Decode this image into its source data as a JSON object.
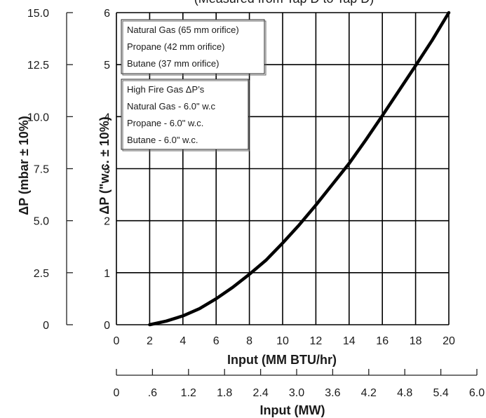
{
  "chart_data": {
    "type": "line",
    "title": "(Measured from Tap D to Tap D)",
    "xlabel": "Input (MM BTU/hr)",
    "ylabel": "ΔP (\"w.c. ± 10%)",
    "ylabel_secondary": "ΔP (mbar ± 10%)",
    "xlabel_secondary": "Input (MW)",
    "xlim": [
      0,
      20
    ],
    "ylim": [
      0,
      6
    ],
    "grid": true,
    "x_ticks": [
      "0",
      "2",
      "4",
      "6",
      "8",
      "10",
      "12",
      "14",
      "16",
      "18",
      "20"
    ],
    "y_ticks": [
      "0",
      "1",
      "2",
      "3",
      "4",
      "5",
      "6"
    ],
    "y_secondary_ticks": [
      "0",
      "2.5",
      "5.0",
      "7.5",
      "10.0",
      "12.5",
      "15.0"
    ],
    "x_secondary_ticks": [
      "0",
      ".6",
      "1.2",
      "1.8",
      "2.4",
      "3.0",
      "3.6",
      "4.2",
      "4.8",
      "5.4",
      "6.0"
    ],
    "series": [
      {
        "x": [
          2,
          3,
          4,
          5,
          6,
          7,
          8,
          9,
          10,
          11,
          12,
          13,
          14,
          15,
          16,
          17,
          18,
          19,
          20
        ],
        "values": [
          0.0,
          0.07,
          0.17,
          0.31,
          0.5,
          0.72,
          0.97,
          1.24,
          1.57,
          1.92,
          2.3,
          2.7,
          3.1,
          3.55,
          4.02,
          4.5,
          4.98,
          5.47,
          6.0
        ]
      }
    ],
    "legend_boxes": [
      {
        "lines": [
          "Natural Gas (65 mm orifice)",
          "Propane (42 mm orifice)",
          "Butane (37 mm orifice)"
        ]
      },
      {
        "lines": [
          "High Fire Gas ΔP’s",
          "Natural Gas - 6.0\" w.c",
          "Propane - 6.0\" w.c.",
          "Butane - 6.0\" w.c."
        ]
      }
    ],
    "colors": {
      "line": "#000000",
      "grid": "#000000"
    }
  }
}
